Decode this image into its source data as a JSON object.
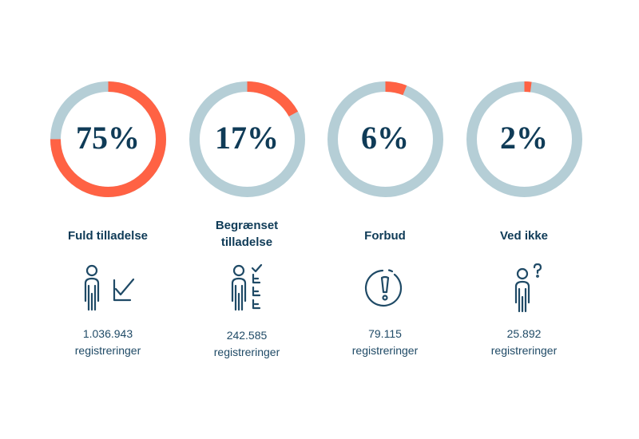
{
  "chart_data": {
    "type": "donut",
    "track_color": "#b5ced6",
    "fill_color": "#ff6244",
    "items": [
      {
        "percent_label": "75%",
        "value": 75,
        "label": "Fuld tilladelse",
        "count_value": "1.036.943",
        "count_unit": "registreringer",
        "icon": "person-check-icon"
      },
      {
        "percent_label": "17%",
        "value": 17,
        "label": "Begrænset tilladelse",
        "count_value": "242.585",
        "count_unit": "registreringer",
        "icon": "person-checklist-icon"
      },
      {
        "percent_label": "6%",
        "value": 6,
        "label": "Forbud",
        "count_value": "79.115",
        "count_unit": "registreringer",
        "icon": "exclamation-circle-icon"
      },
      {
        "percent_label": "2%",
        "value": 2,
        "label": "Ved ikke",
        "count_value": "25.892",
        "count_unit": "registreringer",
        "icon": "person-question-icon"
      }
    ]
  }
}
